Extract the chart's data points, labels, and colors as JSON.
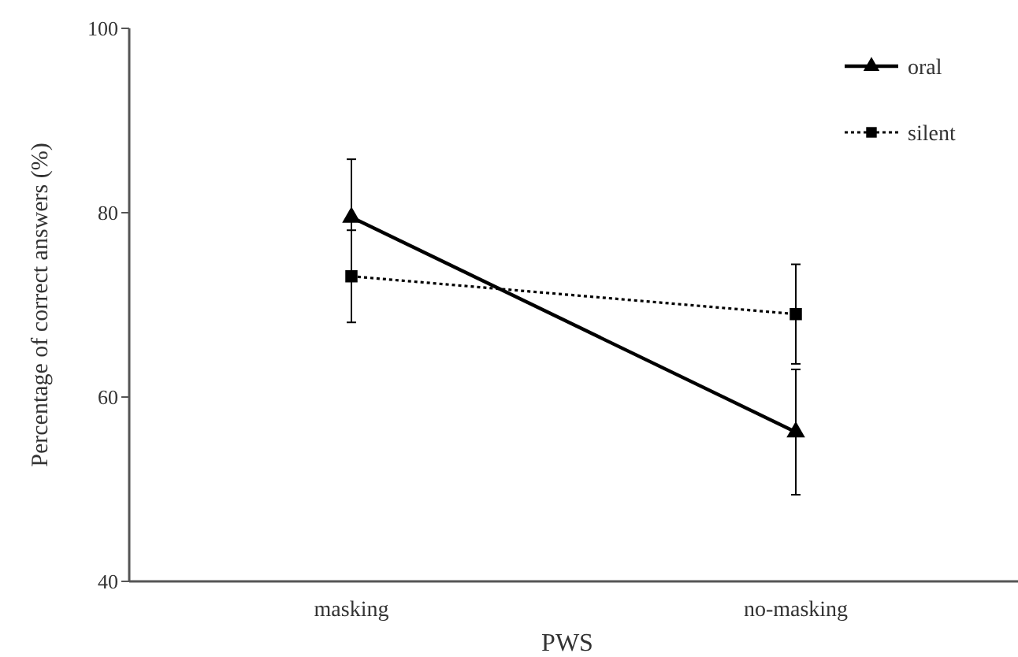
{
  "chart_data": {
    "type": "line",
    "xlabel": "PWS",
    "ylabel": "Percentage of  correct answers (%)",
    "categories": [
      "masking",
      "no-masking"
    ],
    "ylim": [
      40,
      100
    ],
    "yticks": [
      40,
      60,
      80,
      100
    ],
    "grid": false,
    "legend": "top right",
    "series": [
      {
        "name": "oral",
        "color": "#000000",
        "values": [
          79.5,
          56.2
        ],
        "errors": [
          6.3,
          6.8
        ],
        "marker": "triangle",
        "line_style": "solid"
      },
      {
        "name": "silent",
        "color": "#000000",
        "values": [
          73.1,
          69.0
        ],
        "errors": [
          5,
          5.4
        ],
        "marker": "square",
        "line_style": "dotted"
      }
    ]
  }
}
